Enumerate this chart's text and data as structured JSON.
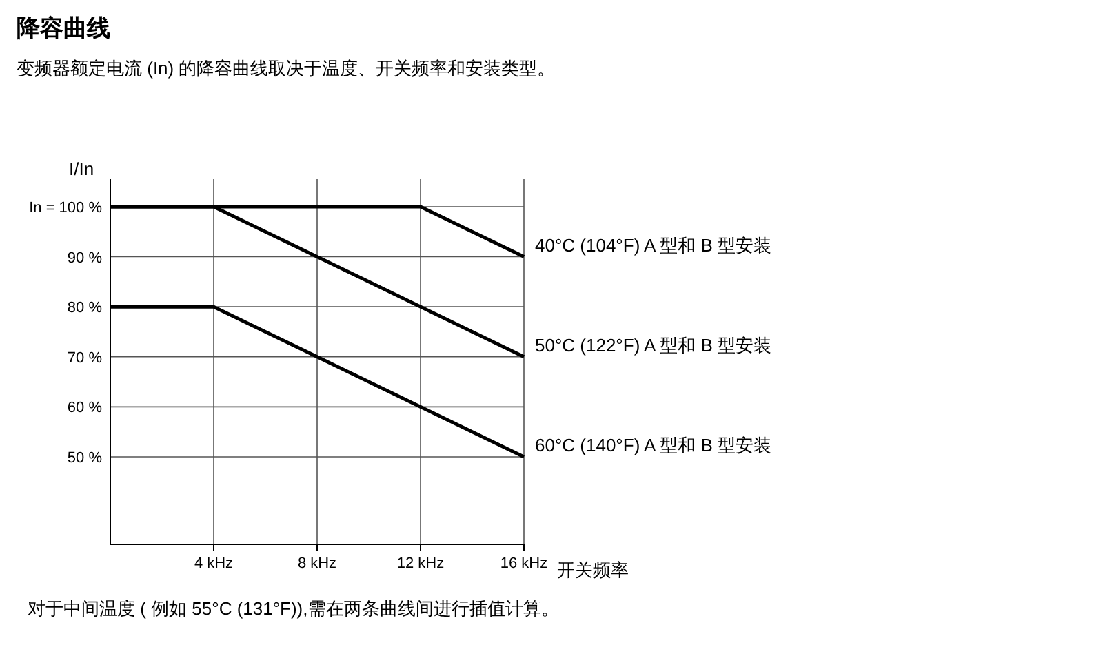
{
  "chart_data": {
    "type": "line",
    "title": "降容曲线",
    "subtitle": "变频器额定电流 (In) 的降容曲线取决于温度、开关频率和安装类型。",
    "xlabel": "开关频率",
    "ylabel": "I/In",
    "annotations": [
      "对于中间温度 ( 例如 55°C (131°F)),需在两条曲线间进行插值计算。"
    ],
    "xlim": [
      0,
      16
    ],
    "ylim": [
      32.5,
      105.5
    ],
    "xticks": [
      {
        "value": 4,
        "label": "4 kHz"
      },
      {
        "value": 8,
        "label": "8 kHz"
      },
      {
        "value": 12,
        "label": "12 kHz"
      },
      {
        "value": 16,
        "label": "16 kHz"
      }
    ],
    "yticks": [
      {
        "value": 50,
        "label": "50 %"
      },
      {
        "value": 60,
        "label": "60 %"
      },
      {
        "value": 70,
        "label": "70 %"
      },
      {
        "value": 80,
        "label": "80 %"
      },
      {
        "value": 90,
        "label": "90 %"
      },
      {
        "value": 100,
        "label": "In = 100 %"
      }
    ],
    "grid": true,
    "marker": "none",
    "line_style": "solid",
    "series": [
      {
        "name": "40°C (104°F) A 型和 B 型安装",
        "color": "#000000",
        "x": [
          0,
          12,
          16
        ],
        "values": [
          100,
          100,
          90
        ]
      },
      {
        "name": "50°C (122°F) A 型和 B 型安装",
        "color": "#000000",
        "x": [
          0,
          4,
          16
        ],
        "values": [
          100,
          100,
          70
        ]
      },
      {
        "name": "60°C (140°F) A 型和 B 型安装",
        "color": "#000000",
        "x": [
          0,
          4,
          16
        ],
        "values": [
          80,
          80,
          50
        ]
      }
    ]
  }
}
